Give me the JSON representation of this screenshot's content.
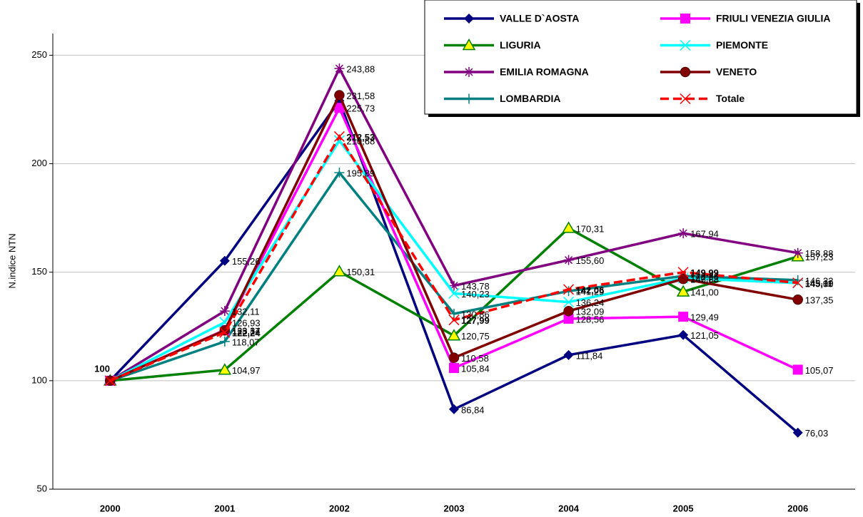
{
  "chart_data": {
    "type": "line",
    "y_label": "N.indice NTN",
    "categories": [
      "2000",
      "2001",
      "2002",
      "2003",
      "2004",
      "2005",
      "2006"
    ],
    "ylim": [
      50,
      260
    ],
    "yticks": [
      50,
      100,
      150,
      200,
      250
    ],
    "grid": true,
    "series": [
      {
        "name": "VALLE D`AOSTA",
        "color": "#000080",
        "marker": "diamond",
        "values": [
          100,
          155.26,
          229,
          86.84,
          111.84,
          121.05,
          76.03
        ],
        "value_labels": [
          null,
          "155,26",
          null,
          "86,84",
          "111,84",
          "121,05",
          "76,03"
        ]
      },
      {
        "name": "LIGURIA",
        "color": "#008000",
        "marker": "triangle",
        "values": [
          100,
          104.97,
          150.31,
          120.75,
          170.31,
          141.0,
          157.23
        ],
        "value_labels": [
          null,
          "104,97",
          "150,31",
          "120,75",
          "170,31",
          "141,00",
          "157,23"
        ]
      },
      {
        "name": "EMILIA ROMAGNA",
        "color": "#800080",
        "marker": "star",
        "values": [
          100,
          132.11,
          243.88,
          143.78,
          155.6,
          167.94,
          158.88
        ],
        "value_labels": [
          null,
          "132,11",
          "243,88",
          "143,78",
          "155,60",
          "167,94",
          "158,88"
        ]
      },
      {
        "name": "LOMBARDIA",
        "color": "#008080",
        "marker": "plus",
        "values": [
          100,
          118.07,
          195.89,
          130.86,
          141.29,
          148.26,
          146.33
        ],
        "value_labels": [
          null,
          "118,07",
          "195,89",
          "130,86",
          "141,29",
          "148,26",
          "146,33"
        ]
      },
      {
        "name": "FRIULI VENEZIA GIULIA",
        "color": "#ff00ff",
        "marker": "square",
        "values": [
          100,
          123.34,
          225.73,
          105.84,
          128.56,
          129.49,
          105.07
        ],
        "value_labels": [
          null,
          "123,34",
          "225,73",
          "105,84",
          "128,56",
          "129,49",
          "105,07"
        ]
      },
      {
        "name": "PIEMONTE",
        "color": "#00ffff",
        "marker": "x",
        "values": [
          100,
          126.93,
          210.68,
          140.23,
          136.24,
          147.23,
          145.0
        ],
        "value_labels": [
          null,
          "126,93",
          "210,68",
          "140,23",
          "136,24",
          "147,23",
          "145,00"
        ]
      },
      {
        "name": "VENETO",
        "color": "#800000",
        "marker": "circle",
        "values": [
          100,
          123.17,
          231.58,
          110.58,
          132.09,
          146.88,
          137.35
        ],
        "value_labels": [
          null,
          "123,17",
          "231,58",
          "110,58",
          "132,09",
          "146,88",
          "137,35"
        ]
      },
      {
        "name": "Totale",
        "color": "#ff0000",
        "marker": "x",
        "dashed": true,
        "bold_labels": true,
        "values": [
          100,
          122.24,
          212.53,
          127.99,
          142.06,
          149.99,
          145.11
        ],
        "value_labels": [
          "100",
          "122,24",
          "212,53",
          "127,99",
          "142,06",
          "149,99",
          "145,11"
        ]
      }
    ]
  }
}
